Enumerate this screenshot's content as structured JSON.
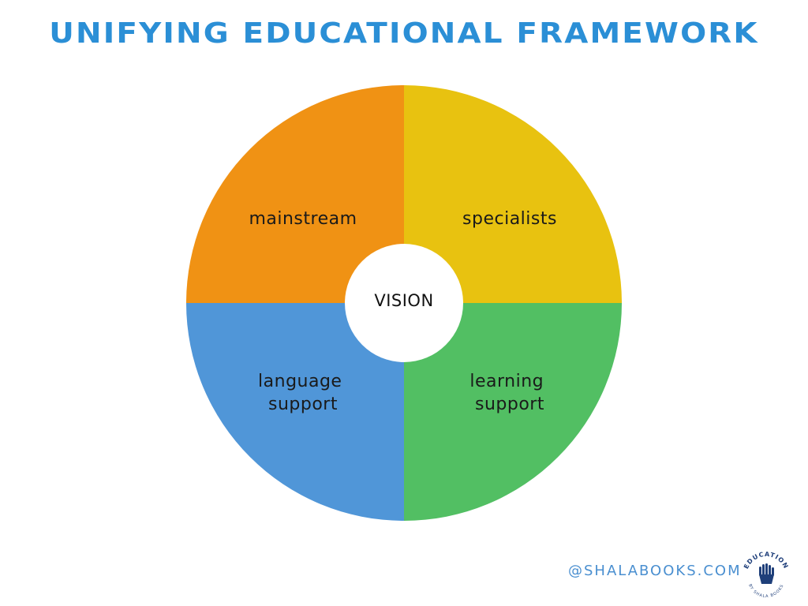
{
  "title": "UNIFYING EDUCATIONAL FRAMEWORK",
  "center": {
    "label": "VISION",
    "color": "#ffffff"
  },
  "segments": [
    {
      "id": "mainstream",
      "lines": [
        "mainstream"
      ],
      "color": "#f09214"
    },
    {
      "id": "specialists",
      "lines": [
        "specialists"
      ],
      "color": "#e8c210"
    },
    {
      "id": "learning-support",
      "lines": [
        "learning",
        "support"
      ],
      "color": "#52bf63"
    },
    {
      "id": "language-support",
      "lines": [
        "language",
        "support"
      ],
      "color": "#5096d8"
    }
  ],
  "colors": {
    "title": "#2b8fd6",
    "footer": "#4a8fd0",
    "logo": "#1f3f7a"
  },
  "footer": {
    "handle": "@SHALABOOKS.COM"
  },
  "logo": {
    "top_text": "EDUCATION",
    "bottom_text": "BY SHALA BOOKS",
    "icon": "raised-hands-icon"
  }
}
